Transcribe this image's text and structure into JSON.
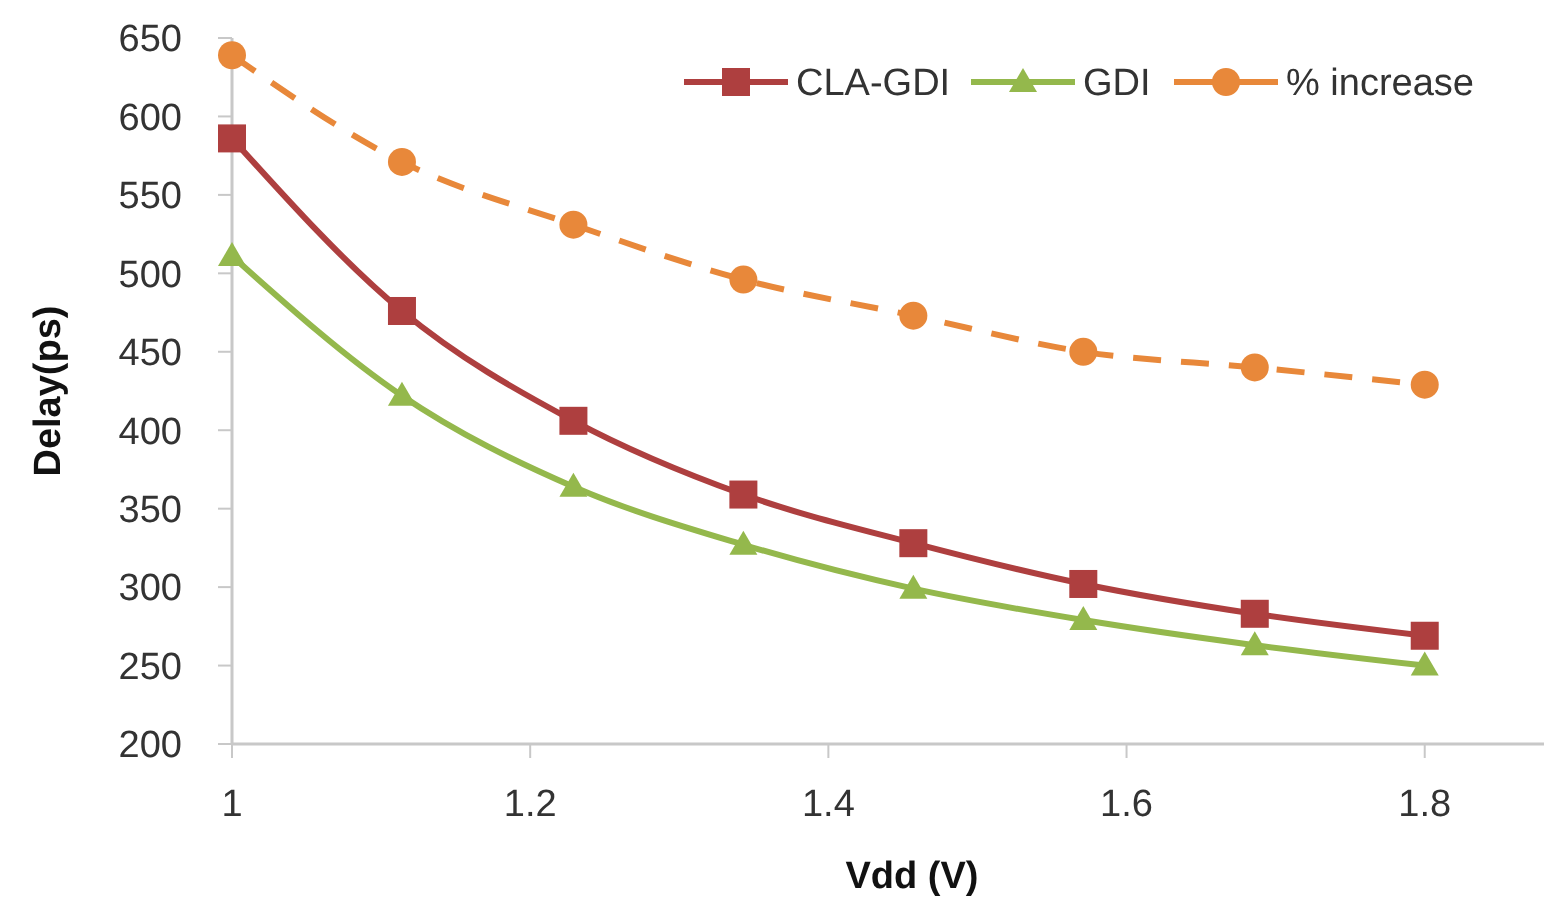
{
  "chart_data": {
    "type": "line",
    "xlabel": "Vdd (V)",
    "ylabel": "Delay(ps)",
    "x": [
      1,
      1.114,
      1.229,
      1.343,
      1.457,
      1.571,
      1.686,
      1.8
    ],
    "xlim": [
      1,
      1.88
    ],
    "xticks": [
      {
        "value": 1,
        "label": "1"
      },
      1.2,
      1.4,
      1.6,
      1.8
    ],
    "ylim": [
      200,
      650
    ],
    "yticks": [
      200,
      250,
      300,
      350,
      400,
      450,
      500,
      550,
      600,
      650
    ],
    "grid": false,
    "legend": "top right",
    "series": [
      {
        "name": "CLA-GDI",
        "color": "#ae3f3f",
        "marker": "square",
        "line_style": "solid",
        "values": [
          586,
          476,
          406,
          359,
          328,
          302,
          283,
          269
        ]
      },
      {
        "name": "GDI",
        "color": "#94b84c",
        "marker": "triangle",
        "line_style": "solid",
        "values": [
          511,
          422,
          364,
          327,
          299,
          279,
          263,
          250
        ]
      },
      {
        "name": "% increase",
        "color": "#e8883a",
        "marker": "circle",
        "line_style": "dashed",
        "values": [
          639,
          571,
          531,
          496,
          473,
          450,
          440,
          429
        ]
      }
    ]
  }
}
